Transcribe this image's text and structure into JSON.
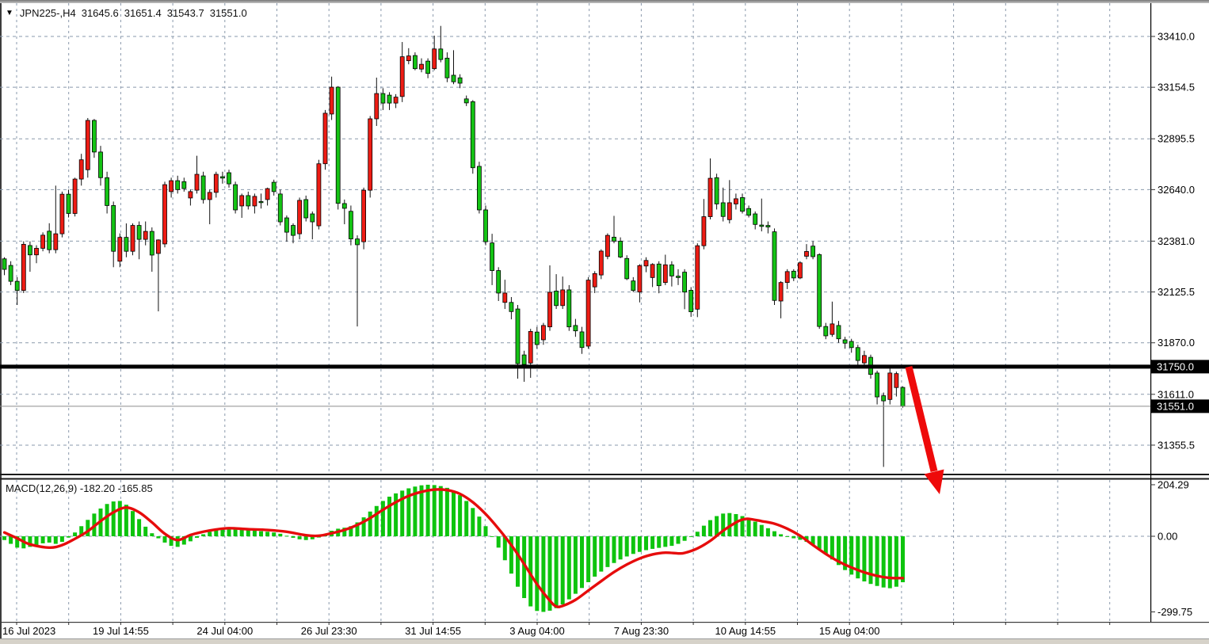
{
  "window": {
    "title": {
      "symbol_period": "JPN225-,H4",
      "open": "31645.6",
      "high": "31651.4",
      "low": "31543.7",
      "close": "31551.0"
    }
  },
  "price_axis": {
    "labels": [
      "33410.0",
      "33154.5",
      "32895.5",
      "32640.0",
      "32381.0",
      "32125.5",
      "31870.0",
      "31611.0",
      "31355.5"
    ],
    "values": [
      33410.0,
      33154.5,
      32895.5,
      32640.0,
      32381.0,
      32125.5,
      31870.0,
      31611.0,
      31355.5
    ],
    "tags": [
      {
        "text": "31750.0",
        "value": 31750.0,
        "kind": "level-line-tag"
      },
      {
        "text": "31551.0",
        "value": 31551.0,
        "kind": "current-price-tag"
      }
    ]
  },
  "time_axis": {
    "labels": [
      "16 Jul 2023",
      "19 Jul 14:55",
      "24 Jul 04:00",
      "26 Jul 23:30",
      "31 Jul 14:55",
      "3 Aug 04:00",
      "7 Aug 23:30",
      "10 Aug 14:55",
      "15 Aug 04:00"
    ]
  },
  "indicator": {
    "name": "MACD(12,26,9)",
    "values": " -182.20 -165.85",
    "axis_labels": [
      "204.29",
      "0.00",
      "-299.75"
    ],
    "axis_values": [
      204.29,
      0.0,
      -299.75
    ]
  },
  "colors": {
    "bull_body": "#ee1c14",
    "bear_body": "#14c314",
    "wick": "#111111",
    "grid": "#8a99ac",
    "macd_hist": "#0ec40e",
    "macd_signal": "#e60c0c",
    "level_line": "#000000",
    "current_price_line": "#8c8c8c",
    "arrow": "#ee0a0a",
    "axis_text": "#000000",
    "tag_bg": "#000000",
    "tag_text": "#ffffff"
  },
  "chart_data": {
    "type": "candlestick",
    "symbol": "JPN225-",
    "timeframe": "H4",
    "title": "JPN225-,H4 31645.6 31651.4 31543.7 31551.0",
    "ylim": [
      31246,
      33463
    ],
    "price_gridlines": [
      33410.0,
      33154.5,
      32895.5,
      32640.0,
      32381.0,
      32125.5,
      31870.0,
      31611.0,
      31355.5
    ],
    "grid": "dashed",
    "candles": [
      [
        32292,
        32300,
        32210,
        32239
      ],
      [
        32259,
        32280,
        32160,
        32179
      ],
      [
        32179,
        32200,
        32060,
        32133
      ],
      [
        32133,
        32380,
        32120,
        32365
      ],
      [
        32359,
        32380,
        32227,
        32312
      ],
      [
        32312,
        32360,
        32270,
        32345
      ],
      [
        32345,
        32425,
        32330,
        32411
      ],
      [
        32431,
        32471,
        32320,
        32338
      ],
      [
        32338,
        32660,
        32320,
        32418
      ],
      [
        32418,
        32630,
        32400,
        32617
      ],
      [
        32617,
        32640,
        32500,
        32520
      ],
      [
        32520,
        32700,
        32505,
        32693
      ],
      [
        32693,
        32820,
        32660,
        32790
      ],
      [
        32740,
        33000,
        32700,
        32988
      ],
      [
        32988,
        32995,
        32800,
        32829
      ],
      [
        32829,
        32860,
        32660,
        32700
      ],
      [
        32700,
        32730,
        32520,
        32560
      ],
      [
        32560,
        32580,
        32250,
        32330
      ],
      [
        32280,
        32420,
        32250,
        32400
      ],
      [
        32400,
        32470,
        32300,
        32330
      ],
      [
        32330,
        32470,
        32310,
        32460
      ],
      [
        32460,
        32480,
        32290,
        32390
      ],
      [
        32390,
        32480,
        32360,
        32430
      ],
      [
        32430,
        32450,
        32227,
        32311
      ],
      [
        32319,
        32390,
        32028,
        32387
      ],
      [
        32367,
        32680,
        32350,
        32665
      ],
      [
        32630,
        32700,
        32600,
        32685
      ],
      [
        32685,
        32710,
        32620,
        32640
      ],
      [
        32680,
        32700,
        32630,
        32645
      ],
      [
        32598,
        32640,
        32560,
        32630
      ],
      [
        32637,
        32810,
        32620,
        32717
      ],
      [
        32709,
        32730,
        32570,
        32590
      ],
      [
        32590,
        32640,
        32466,
        32626
      ],
      [
        32626,
        32730,
        32600,
        32717
      ],
      [
        32705,
        32730,
        32670,
        32698
      ],
      [
        32725,
        32740,
        32650,
        32669
      ],
      [
        32665,
        32680,
        32520,
        32538
      ],
      [
        32558,
        32620,
        32498,
        32610
      ],
      [
        32610,
        32630,
        32540,
        32558
      ],
      [
        32558,
        32620,
        32520,
        32606
      ],
      [
        32580,
        32620,
        32545,
        32575
      ],
      [
        32590,
        32650,
        32560,
        32645
      ],
      [
        32677,
        32690,
        32610,
        32630
      ],
      [
        32618,
        32640,
        32460,
        32478
      ],
      [
        32498,
        32510,
        32378,
        32426
      ],
      [
        32460,
        32470,
        32370,
        32410
      ],
      [
        32418,
        32600,
        32390,
        32586
      ],
      [
        32590,
        32610,
        32480,
        32498
      ],
      [
        32518,
        32530,
        32390,
        32478
      ],
      [
        32458,
        32790,
        32440,
        32770
      ],
      [
        32770,
        33040,
        32740,
        33024
      ],
      [
        33020,
        33208,
        32990,
        33155
      ],
      [
        33155,
        33160,
        32540,
        32571
      ],
      [
        32570,
        32590,
        32466,
        32546
      ],
      [
        32531,
        32560,
        32360,
        32392
      ],
      [
        32392,
        32410,
        31952,
        32363
      ],
      [
        32378,
        32650,
        32340,
        32637
      ],
      [
        32637,
        33010,
        32600,
        32996
      ],
      [
        32996,
        33203,
        32960,
        33123
      ],
      [
        33123,
        33150,
        33040,
        33075
      ],
      [
        33115,
        33130,
        33040,
        33075
      ],
      [
        33075,
        33120,
        33050,
        33105
      ],
      [
        33108,
        33382,
        33080,
        33308
      ],
      [
        33288,
        33351,
        33270,
        33312
      ],
      [
        33314,
        33330,
        33240,
        33248
      ],
      [
        33246,
        33300,
        33230,
        33270
      ],
      [
        33286,
        33300,
        33200,
        33224
      ],
      [
        33248,
        33414,
        33240,
        33347
      ],
      [
        33347,
        33463,
        33280,
        33294
      ],
      [
        33301,
        33330,
        33180,
        33202
      ],
      [
        33215,
        33341,
        33170,
        33182
      ],
      [
        33202,
        33220,
        33150,
        33175
      ],
      [
        33096,
        33113,
        33060,
        33076
      ],
      [
        33082,
        33090,
        32720,
        32750
      ],
      [
        32757,
        32780,
        32520,
        32538
      ],
      [
        32538,
        32560,
        32360,
        32378
      ],
      [
        32372,
        32418,
        32160,
        32233
      ],
      [
        32233,
        32250,
        32080,
        32120
      ],
      [
        32073,
        32187,
        32040,
        32120
      ],
      [
        32073,
        32100,
        31988,
        32027
      ],
      [
        32040,
        32060,
        31690,
        31765
      ],
      [
        31809,
        31830,
        31674,
        31761
      ],
      [
        31768,
        31940,
        31694,
        31927
      ],
      [
        31924,
        31950,
        31840,
        31861
      ],
      [
        31885,
        31970,
        31860,
        31957
      ],
      [
        31950,
        32259,
        31930,
        32124
      ],
      [
        32130,
        32215,
        32040,
        32057
      ],
      [
        32057,
        32203,
        32040,
        32136
      ],
      [
        32136,
        32160,
        31930,
        31950
      ],
      [
        31957,
        31990,
        31900,
        31930
      ],
      [
        31925,
        31950,
        31814,
        31846
      ],
      [
        31853,
        32200,
        31840,
        32185
      ],
      [
        32151,
        32230,
        32120,
        32218
      ],
      [
        32211,
        32340,
        32190,
        32331
      ],
      [
        32304,
        32420,
        32290,
        32410
      ],
      [
        32401,
        32508,
        32370,
        32381
      ],
      [
        32381,
        32400,
        32295,
        32301
      ],
      [
        32294,
        32310,
        32185,
        32192
      ],
      [
        32181,
        32200,
        32125,
        32133
      ],
      [
        32125,
        32265,
        32073,
        32258
      ],
      [
        32256,
        32300,
        32225,
        32284
      ],
      [
        32198,
        32270,
        32150,
        32264
      ],
      [
        32266,
        32280,
        32119,
        32157
      ],
      [
        32173,
        32313,
        32160,
        32262
      ],
      [
        32262,
        32280,
        32153,
        32206
      ],
      [
        32205,
        32240,
        32160,
        32198
      ],
      [
        32225,
        32240,
        32039,
        32125
      ],
      [
        32134,
        32150,
        32000,
        32026
      ],
      [
        32039,
        32370,
        31999,
        32358
      ],
      [
        32358,
        32593,
        32340,
        32504
      ],
      [
        32504,
        32797,
        32490,
        32697
      ],
      [
        32700,
        32720,
        32540,
        32568
      ],
      [
        32574,
        32650,
        32480,
        32505
      ],
      [
        32489,
        32688,
        32470,
        32574
      ],
      [
        32568,
        32620,
        32540,
        32594
      ],
      [
        32600,
        32620,
        32520,
        32531
      ],
      [
        32545,
        32560,
        32500,
        32511
      ],
      [
        32518,
        32530,
        32440,
        32465
      ],
      [
        32462,
        32595,
        32430,
        32455
      ],
      [
        32460,
        32480,
        32420,
        32452
      ],
      [
        32428,
        32445,
        32060,
        32083
      ],
      [
        32080,
        32180,
        31993,
        32173
      ],
      [
        32173,
        32240,
        32140,
        32228
      ],
      [
        32230,
        32240,
        32180,
        32196
      ],
      [
        32196,
        32280,
        32190,
        32272
      ],
      [
        32305,
        32366,
        32290,
        32329
      ],
      [
        32356,
        32381,
        32290,
        32303
      ],
      [
        32313,
        32320,
        31940,
        31952
      ],
      [
        31952,
        31970,
        31888,
        31905
      ],
      [
        31912,
        32077,
        31900,
        31965
      ],
      [
        31957,
        31980,
        31870,
        31890
      ],
      [
        31885,
        31900,
        31840,
        31868
      ],
      [
        31877,
        31890,
        31820,
        31846
      ],
      [
        31846,
        31860,
        31758,
        31781
      ],
      [
        31769,
        31830,
        31750,
        31806
      ],
      [
        31797,
        31810,
        31690,
        31711
      ],
      [
        31718,
        31730,
        31560,
        31598
      ],
      [
        31604,
        31620,
        31246,
        31578
      ],
      [
        31585,
        31747,
        31560,
        31718
      ],
      [
        31645,
        31725,
        31600,
        31715
      ],
      [
        31645.6,
        31651.4,
        31543.7,
        31551.0
      ]
    ],
    "macd": {
      "type": "bar+line",
      "params": "12,26,9",
      "last_macd": -182.2,
      "last_signal": -165.85,
      "ylim": [
        -299.75,
        204.29
      ],
      "histogram": [
        -15,
        -30,
        -45,
        -48,
        -42,
        -35,
        -28,
        -25,
        -30,
        -22,
        -5,
        15,
        40,
        65,
        90,
        110,
        128,
        138,
        140,
        125,
        100,
        68,
        38,
        12,
        -8,
        -25,
        -38,
        -42,
        -33,
        -20,
        -6,
        8,
        18,
        26,
        32,
        35,
        33,
        28,
        24,
        22,
        20,
        18,
        15,
        10,
        2,
        -6,
        -12,
        -15,
        -12,
        -5,
        8,
        22,
        30,
        34,
        40,
        55,
        75,
        98,
        120,
        140,
        157,
        170,
        181,
        190,
        197,
        202,
        204.29,
        203,
        199,
        192,
        180,
        163,
        140,
        112,
        78,
        40,
        0,
        -45,
        -95,
        -148,
        -200,
        -245,
        -278,
        -296,
        -299.75,
        -295,
        -285,
        -270,
        -250,
        -228,
        -205,
        -182,
        -160,
        -140,
        -122,
        -106,
        -92,
        -80,
        -70,
        -62,
        -55,
        -50,
        -46,
        -42,
        -38,
        -30,
        -18,
        -2,
        18,
        42,
        64,
        80,
        90,
        92,
        88,
        80,
        70,
        58,
        45,
        32,
        20,
        8,
        -2,
        -8,
        -14,
        -22,
        -34,
        -50,
        -70,
        -92,
        -114,
        -134,
        -152,
        -167,
        -179,
        -189,
        -197,
        -203,
        -206,
        -200,
        -182.2
      ],
      "signal_anchors": [
        [
          0,
          15
        ],
        [
          2,
          -8
        ],
        [
          4,
          -32
        ],
        [
          7,
          -45
        ],
        [
          9,
          -35
        ],
        [
          11,
          -10
        ],
        [
          13,
          20
        ],
        [
          15,
          60
        ],
        [
          17,
          95
        ],
        [
          19,
          114
        ],
        [
          21,
          95
        ],
        [
          23,
          55
        ],
        [
          25,
          10
        ],
        [
          27,
          -15
        ],
        [
          29,
          5
        ],
        [
          31,
          18
        ],
        [
          33,
          27
        ],
        [
          35,
          32
        ],
        [
          38,
          28
        ],
        [
          41,
          25
        ],
        [
          44,
          18
        ],
        [
          47,
          4
        ],
        [
          49,
          2
        ],
        [
          51,
          12
        ],
        [
          53,
          25
        ],
        [
          55,
          45
        ],
        [
          57,
          72
        ],
        [
          59,
          105
        ],
        [
          61,
          135
        ],
        [
          63,
          160
        ],
        [
          65,
          176
        ],
        [
          67,
          185
        ],
        [
          69,
          183
        ],
        [
          71,
          168
        ],
        [
          73,
          135
        ],
        [
          75,
          88
        ],
        [
          77,
          30
        ],
        [
          79,
          -35
        ],
        [
          81,
          -110
        ],
        [
          83,
          -190
        ],
        [
          85,
          -255
        ],
        [
          86,
          -278
        ],
        [
          87,
          -276
        ],
        [
          89,
          -252
        ],
        [
          91,
          -215
        ],
        [
          93,
          -178
        ],
        [
          95,
          -142
        ],
        [
          97,
          -112
        ],
        [
          99,
          -88
        ],
        [
          101,
          -72
        ],
        [
          103,
          -65
        ],
        [
          105,
          -68
        ],
        [
          106,
          -66
        ],
        [
          108,
          -48
        ],
        [
          110,
          -18
        ],
        [
          112,
          22
        ],
        [
          114,
          55
        ],
        [
          115,
          66
        ],
        [
          116,
          69
        ],
        [
          118,
          60
        ],
        [
          120,
          50
        ],
        [
          122,
          30
        ],
        [
          124,
          2
        ],
        [
          126,
          -35
        ],
        [
          128,
          -70
        ],
        [
          130,
          -100
        ],
        [
          132,
          -124
        ],
        [
          134,
          -143
        ],
        [
          136,
          -157
        ],
        [
          138,
          -165
        ],
        [
          140,
          -165.85
        ]
      ]
    },
    "annotations": {
      "horizontal_level": 31750.0,
      "current_price": 31551.0,
      "arrow": {
        "direction": "down",
        "from_price": 31760,
        "to_price": 31140,
        "color": "#ee0a0a"
      }
    }
  }
}
